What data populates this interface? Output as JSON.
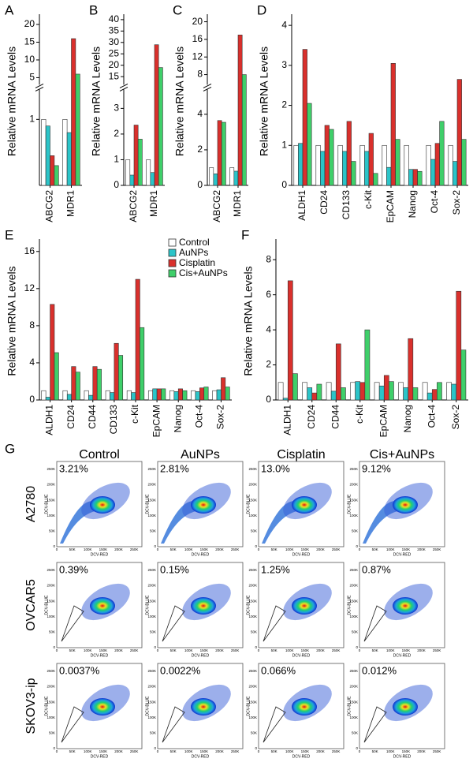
{
  "chart_data": [
    {
      "type": "bar",
      "label": "A",
      "y_label": "Relative mRNA Levels",
      "categories": [
        "ABCG2",
        "MDR1"
      ],
      "ylim": [
        0,
        22
      ],
      "ybreak": [
        1.4,
        4
      ],
      "yticks": [
        1,
        5,
        10,
        15,
        20
      ],
      "series": [
        {
          "name": "Control",
          "color": "#ffffff",
          "values": [
            1,
            1
          ]
        },
        {
          "name": "AuNPs",
          "color": "#2bc4c8",
          "values": [
            0.9,
            0.8
          ]
        },
        {
          "name": "Cisplatin",
          "color": "#d9302c",
          "values": [
            0.45,
            16
          ]
        },
        {
          "name": "Cis+AuNPs",
          "color": "#3fcf6a",
          "values": [
            0.3,
            6
          ]
        }
      ]
    },
    {
      "type": "bar",
      "label": "B",
      "y_label": "Relative mRNA Levels",
      "categories": [
        "ABCG2",
        "MDR1"
      ],
      "ylim": [
        0,
        41
      ],
      "ybreak": [
        3.6,
        13
      ],
      "yticks": [
        0,
        1,
        2,
        3,
        15,
        20,
        25,
        30,
        35,
        40
      ],
      "series": [
        {
          "name": "Control",
          "color": "#ffffff",
          "values": [
            1,
            1
          ]
        },
        {
          "name": "AuNPs",
          "color": "#2bc4c8",
          "values": [
            0.4,
            0.5
          ]
        },
        {
          "name": "Cisplatin",
          "color": "#d9302c",
          "values": [
            2.35,
            29
          ]
        },
        {
          "name": "Cis+AuNPs",
          "color": "#3fcf6a",
          "values": [
            1.8,
            19
          ]
        }
      ]
    },
    {
      "type": "bar",
      "label": "C",
      "y_label": "Relative mRNA Levels",
      "categories": [
        "ABCG2",
        "MDR1"
      ],
      "ylim": [
        0,
        21
      ],
      "ybreak": [
        5.2,
        6.5
      ],
      "yticks": [
        0,
        2,
        4,
        8,
        12,
        16,
        20
      ],
      "series": [
        {
          "name": "Control",
          "color": "#ffffff",
          "values": [
            1,
            1
          ]
        },
        {
          "name": "AuNPs",
          "color": "#2bc4c8",
          "values": [
            0.65,
            0.8
          ]
        },
        {
          "name": "Cisplatin",
          "color": "#d9302c",
          "values": [
            3.65,
            17
          ]
        },
        {
          "name": "Cis+AuNPs",
          "color": "#3fcf6a",
          "values": [
            3.55,
            8
          ]
        }
      ]
    },
    {
      "type": "bar",
      "label": "D",
      "y_label": "Relative mRNA Levels",
      "categories": [
        "ALDH1",
        "CD24",
        "CD133",
        "c-Kit",
        "EpCAM",
        "Nanog",
        "Oct-4",
        "Sox-2"
      ],
      "ylim": [
        0,
        4.2
      ],
      "yticks": [
        0,
        1,
        2,
        3,
        4
      ],
      "series": [
        {
          "name": "Control",
          "color": "#ffffff",
          "values": [
            1,
            1,
            1,
            1,
            1,
            1,
            1,
            1
          ]
        },
        {
          "name": "AuNPs",
          "color": "#2bc4c8",
          "values": [
            1.05,
            0.85,
            0.85,
            0.85,
            0.45,
            0.4,
            0.65,
            0.6
          ]
        },
        {
          "name": "Cisplatin",
          "color": "#d9302c",
          "values": [
            3.4,
            1.5,
            1.6,
            1.3,
            3.05,
            0.4,
            1.05,
            2.65
          ]
        },
        {
          "name": "Cis+AuNPs",
          "color": "#3fcf6a",
          "values": [
            2.05,
            1.4,
            0.6,
            0.3,
            1.15,
            0.35,
            1.6,
            1.15
          ]
        }
      ]
    },
    {
      "type": "bar",
      "label": "E",
      "y_label": "Relative mRNA Levels",
      "legend": "upper right",
      "categories": [
        "ALDH1",
        "CD24",
        "CD44",
        "CD133",
        "c-Kit",
        "EpCAM",
        "Nanog",
        "Oct-4",
        "Sox-2"
      ],
      "ylim": [
        0,
        17
      ],
      "yticks": [
        0,
        4,
        8,
        12,
        16
      ],
      "series": [
        {
          "name": "Control",
          "color": "#ffffff",
          "values": [
            1,
            1,
            1,
            1,
            1,
            1,
            1,
            1,
            1
          ]
        },
        {
          "name": "AuNPs",
          "color": "#2bc4c8",
          "values": [
            0.3,
            0.6,
            0.5,
            0.8,
            0.8,
            1.2,
            0.9,
            0.9,
            1.1
          ]
        },
        {
          "name": "Cisplatin",
          "color": "#d9302c",
          "values": [
            10.3,
            3.6,
            3.6,
            6.1,
            13,
            1.2,
            1.2,
            1.3,
            2.4
          ]
        },
        {
          "name": "Cis+AuNPs",
          "color": "#3fcf6a",
          "values": [
            5.1,
            3.0,
            3.3,
            4.8,
            7.8,
            1.2,
            1.0,
            1.4,
            1.4
          ]
        }
      ]
    },
    {
      "type": "bar",
      "label": "F",
      "y_label": "Relative mRNA Levels",
      "categories": [
        "ALDH1",
        "CD24",
        "CD44",
        "c-Kit",
        "EpCAM",
        "Nanog",
        "Oct-4",
        "Sox-2"
      ],
      "ylim": [
        0,
        9
      ],
      "yticks": [
        0,
        2,
        4,
        6,
        8
      ],
      "series": [
        {
          "name": "Control",
          "color": "#ffffff",
          "values": [
            1,
            1,
            1,
            1,
            1,
            1,
            1,
            1
          ]
        },
        {
          "name": "AuNPs",
          "color": "#2bc4c8",
          "values": [
            0.1,
            0.7,
            0.5,
            1.05,
            0.8,
            0.7,
            0.4,
            0.9
          ]
        },
        {
          "name": "Cisplatin",
          "color": "#d9302c",
          "values": [
            6.8,
            0.4,
            3.2,
            1.0,
            1.4,
            3.5,
            0.6,
            6.2
          ]
        },
        {
          "name": "Cis+AuNPs",
          "color": "#3fcf6a",
          "values": [
            1.5,
            0.9,
            0.7,
            4.0,
            1.05,
            0.7,
            1.0,
            2.85
          ]
        }
      ]
    }
  ],
  "cytometry": {
    "label": "G",
    "columns": [
      "Control",
      "AuNPs",
      "Cisplatin",
      "Cis+AuNPs"
    ],
    "x_axis": "DCV-RED",
    "y_axis": "DCV-BLUE",
    "xticks": [
      "0",
      "50K",
      "100K",
      "150K",
      "200K",
      "250K"
    ],
    "yticks": [
      "0",
      "50K",
      "100K",
      "150K",
      "200K",
      "250K"
    ],
    "rows": [
      {
        "name": "A2780",
        "percents": [
          "3.21%",
          "2.81%",
          "13.0%",
          "9.12%"
        ]
      },
      {
        "name": "OVCAR5",
        "percents": [
          "0.39%",
          "0.15%",
          "1.25%",
          "0.87%"
        ]
      },
      {
        "name": "SKOV3-ip",
        "percents": [
          "0.0037%",
          "0.0022%",
          "0.066%",
          "0.012%"
        ]
      }
    ]
  }
}
